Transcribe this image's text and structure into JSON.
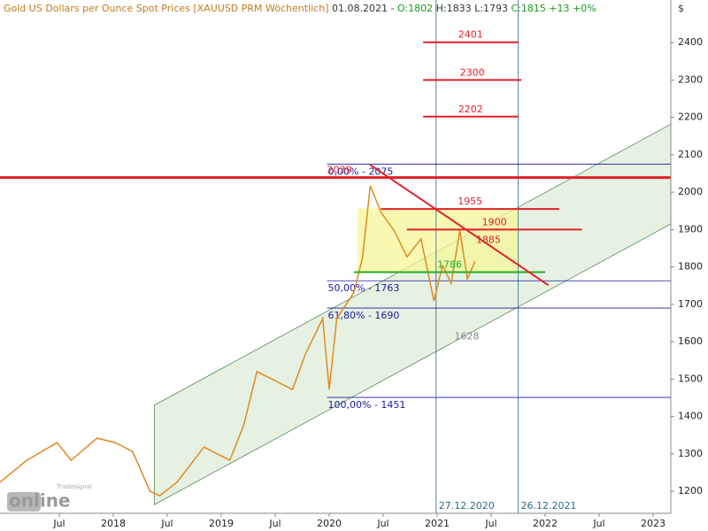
{
  "chart_data": {
    "type": "line",
    "header": [
      "Gold US Dollars per Ounce Spot Prices [XAUUSD PRM  Wöchentlich]",
      "01.08.2021 -",
      "O:1802",
      "H:1833",
      "L:1793",
      "C:1815 +13 +0%"
    ],
    "y_unit": "$",
    "logo": {
      "small": "Tradesignal",
      "big": "online"
    },
    "color": "#e08a1e",
    "x": [
      2016.95,
      2017.2,
      2017.48,
      2017.61,
      2017.85,
      2018.02,
      2018.18,
      2018.34,
      2018.43,
      2018.59,
      2018.84,
      2019.08,
      2019.21,
      2019.33,
      2019.49,
      2019.66,
      2019.78,
      2019.94,
      2020.0,
      2020.07,
      2020.23,
      2020.31,
      2020.38,
      2020.48,
      2020.6,
      2020.72,
      2020.85,
      2020.97,
      2021.05,
      2021.13,
      2021.21,
      2021.28,
      2021.35
    ],
    "values": [
      1224,
      1283,
      1330,
      1283,
      1342,
      1330,
      1306,
      1200,
      1188,
      1224,
      1318,
      1283,
      1378,
      1520,
      1497,
      1472,
      1567,
      1662,
      1472,
      1662,
      1732,
      1827,
      2017,
      1946,
      1898,
      1827,
      1875,
      1709,
      1804,
      1756,
      1898,
      1768,
      1815
    ],
    "xlim": [
      2016.951,
      2023.164
    ],
    "ylim": [
      1141,
      2514
    ],
    "xticks": [
      {
        "value": 2017.5,
        "label": "Jul"
      },
      2018,
      {
        "value": 2018.5,
        "label": "Jul"
      },
      2019,
      {
        "value": 2019.5,
        "label": "Jul"
      },
      2020,
      {
        "value": 2020.5,
        "label": "Jul"
      },
      2021,
      {
        "value": 2021.5,
        "label": "Jul"
      },
      2022,
      {
        "value": 2022.5,
        "label": "Jul"
      },
      2023
    ],
    "yticks": [
      1200,
      1300,
      1400,
      1500,
      1600,
      1700,
      1800,
      1900,
      2000,
      2100,
      2200,
      2300,
      2400
    ],
    "channel": {
      "color": "#dcebd6",
      "x": [
        2018.38,
        2023.164
      ],
      "lower": [
        1164,
        1915
      ],
      "upper": [
        1430,
        2182
      ]
    },
    "box": {
      "color": "#f5f59a",
      "x": [
        2020.26,
        2021.76
      ],
      "y": [
        1785,
        1957
      ]
    },
    "trend": {
      "color": "#e0202a",
      "x": [
        2020.38,
        2022.03
      ],
      "y": [
        2073,
        1751
      ]
    },
    "verticals": [
      {
        "value": 2020.99,
        "label": "27.12.2020"
      },
      {
        "value": 2021.75,
        "label": "26.12.2021"
      }
    ],
    "levels": [
      {
        "value": 2401,
        "x": [
          2020.87,
          2021.75
        ],
        "color": "#e0202a",
        "show_line": true
      },
      {
        "value": 2300,
        "x": [
          2020.87,
          2021.78
        ],
        "color": "#e0202a",
        "show_line": true
      },
      {
        "value": 2202,
        "x": [
          2020.87,
          2021.75
        ],
        "color": "#e0202a",
        "show_line": true
      },
      {
        "value": 2039,
        "x": [
          2016.951,
          2023.164
        ],
        "color": "#e0202a",
        "show_line": true
      },
      {
        "value": 1955,
        "x": [
          2020.48,
          2022.13
        ],
        "color": "#e0202a",
        "show_line": true
      },
      {
        "value": 1900,
        "x": [
          2020.72,
          2022.34
        ],
        "color": "#e0202a",
        "show_line": true
      },
      {
        "value": 1885,
        "x": [
          2021.35,
          2021.6
        ],
        "color": "#e0202a",
        "show_line": false
      },
      {
        "value": 1786,
        "x": [
          2020.23,
          2022.0
        ],
        "color": "#22b022",
        "show_line": true
      },
      {
        "value": 1628,
        "x": [
          2021.15,
          2021.4
        ],
        "color": "#888888",
        "show_line": false
      }
    ],
    "fib": [
      {
        "value": 2075,
        "label": "0,00% - 2075"
      },
      {
        "value": 1763,
        "label": "50,00% - 1763"
      },
      {
        "value": 1690,
        "label": "61,80% - 1690"
      },
      {
        "value": 1451,
        "label": "100,00% - 1451"
      }
    ],
    "fib_x": [
      2019.98,
      2023.164
    ]
  }
}
